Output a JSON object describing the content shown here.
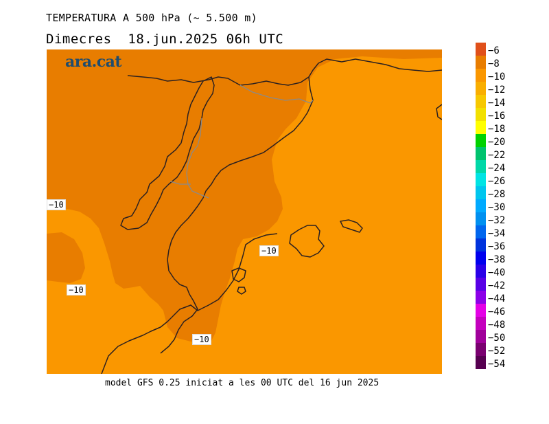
{
  "header": {
    "title": "TEMPERATURA A 500 hPa (~ 5.500 m)",
    "subtitle": "Dimecres  18.jun.2025 06h UTC"
  },
  "footer": {
    "model_note": "model GFS 0.25 iniciat a les 00 UTC del 16 jun 2025"
  },
  "map": {
    "logo": "ara.cat",
    "contour_labels": [
      "−10",
      "−10",
      "−10",
      "−10"
    ],
    "fill_colors": {
      "minus_8_to_minus_10": "#e87d00",
      "minus_10_to_minus_12": "#fa9700"
    }
  },
  "legend": {
    "labels": [
      "−6",
      "−8",
      "−10",
      "−12",
      "−14",
      "−16",
      "−18",
      "−20",
      "−22",
      "−24",
      "−26",
      "−28",
      "−30",
      "−32",
      "−34",
      "−36",
      "−38",
      "−40",
      "−42",
      "−44",
      "−46",
      "−48",
      "−50",
      "−52",
      "−54"
    ],
    "colors": [
      "#e0501a",
      "#e87d00",
      "#fa9700",
      "#f9ae00",
      "#f7c800",
      "#f2e000",
      "#ffff00",
      "#00d200",
      "#00c36e",
      "#00d8a8",
      "#00e4e4",
      "#00c6ee",
      "#00aaff",
      "#0090f0",
      "#0066ee",
      "#0033dd",
      "#0000ee",
      "#2a00e8",
      "#5800e6",
      "#8c00e8",
      "#e400e6",
      "#c400be",
      "#a0009a",
      "#7a0070",
      "#560050"
    ]
  }
}
